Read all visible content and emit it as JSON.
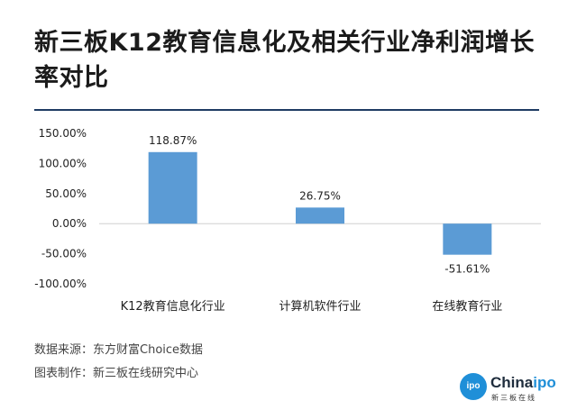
{
  "title": "新三板K12教育信息化及相关行业净利润增长率对比",
  "footer": {
    "source": "数据来源：东方财富Choice数据",
    "made_by": "图表制作：新三板在线研究中心"
  },
  "logo": {
    "badge": "ipo",
    "word_main": "China",
    "word_accent": "ipo",
    "sub": "新三板在线"
  },
  "colors": {
    "bar": "#5b9bd5",
    "title_rule": "#1f3b63",
    "logo_blue": "#1f8fd8"
  },
  "chart_data": {
    "type": "bar",
    "categories": [
      "K12教育信息化行业",
      "计算机软件行业",
      "在线教育行业"
    ],
    "values": [
      118.87,
      26.75,
      -51.61
    ],
    "data_labels": [
      "118.87%",
      "26.75%",
      "-51.61%"
    ],
    "y_ticks": [
      150,
      100,
      50,
      0,
      -50,
      -100
    ],
    "y_tick_labels": [
      "150.00%",
      "100.00%",
      "50.00%",
      "0.00%",
      "-50.00%",
      "-100.00%"
    ],
    "ylim": [
      -100,
      150
    ],
    "grid": false,
    "legend": "none"
  }
}
